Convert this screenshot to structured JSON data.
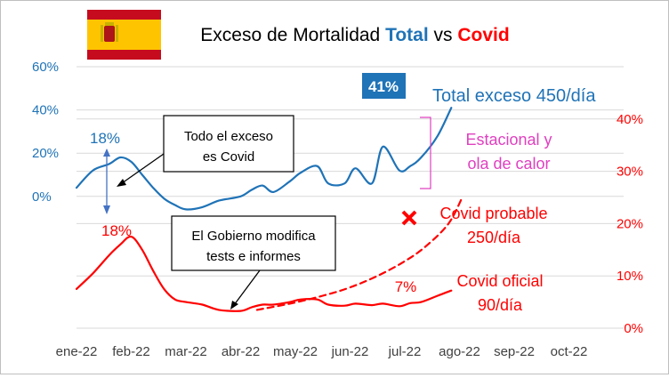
{
  "colors": {
    "total": "#1f73b7",
    "covid": "#ff0000",
    "seasonal": "#e040c0",
    "badge_bg": "#1f73b7",
    "flag_red": "#c60b1e",
    "flag_yellow": "#ffc400"
  },
  "chart_data": {
    "type": "line",
    "title": {
      "prefix": "Exceso de Mortalidad ",
      "total_word": "Total",
      "middle": " vs ",
      "covid_word": "Covid"
    },
    "x_ticks": [
      "ene-22",
      "feb-22",
      "mar-22",
      "abr-22",
      "may-22",
      "jun-22",
      "jul-22",
      "ago-22",
      "sep-22",
      "oct-22"
    ],
    "y_left": {
      "ticks": [
        "60%",
        "40%",
        "20%",
        "0%"
      ],
      "tick_values": [
        60,
        40,
        20,
        0
      ],
      "range": [
        -61,
        60
      ]
    },
    "y_right": {
      "ticks": [
        "40%",
        "30%",
        "20%",
        "10%",
        "0%"
      ],
      "tick_values": [
        40,
        30,
        20,
        10,
        0
      ],
      "range": [
        0,
        50
      ]
    },
    "grid": true,
    "series": [
      {
        "axis": "left",
        "x": [
          0,
          0.3,
          0.6,
          0.8,
          1.0,
          1.2,
          1.4,
          1.6,
          1.8,
          2.0,
          2.3,
          2.6,
          3.0,
          3.2,
          3.4,
          3.6,
          3.9,
          4.1,
          4.4,
          4.6,
          4.9,
          5.1,
          5.4,
          5.6,
          5.9,
          6.1,
          6.3,
          6.6,
          6.85
        ],
        "values": [
          4,
          12,
          15,
          18,
          16,
          10,
          4,
          -1,
          -4,
          -6,
          -5,
          -2,
          0,
          3,
          5,
          2,
          7,
          11,
          14,
          6,
          6,
          13,
          6,
          23,
          12,
          14,
          18,
          28,
          41
        ]
      },
      {
        "axis": "right",
        "x": [
          0,
          0.3,
          0.6,
          0.8,
          1.0,
          1.2,
          1.4,
          1.6,
          1.8,
          2.0,
          2.3,
          2.6,
          3.0,
          3.2,
          3.4,
          3.6,
          3.9,
          4.1,
          4.4,
          4.6,
          4.9,
          5.1,
          5.4,
          5.6,
          5.9,
          6.1,
          6.3,
          6.6,
          6.85
        ],
        "values": [
          7.5,
          10.5,
          14,
          16,
          17.5,
          15,
          11,
          7.5,
          5.5,
          5,
          4.5,
          3.5,
          3.3,
          4,
          4.5,
          4.5,
          5,
          5.5,
          5.5,
          4.5,
          4.3,
          4.7,
          4.4,
          4.7,
          4.2,
          4.8,
          5,
          6.2,
          7.2
        ]
      },
      {
        "axis": "right",
        "style": "dashed",
        "x": [
          3.3,
          3.9,
          4.5,
          5.0,
          5.5,
          6.0,
          6.4,
          6.8,
          7.05
        ],
        "values": [
          3.5,
          4.7,
          6.2,
          7.8,
          10,
          12.8,
          15.8,
          20,
          25
        ]
      }
    ],
    "annotations": {
      "badge": "41%",
      "total_label": "Total exceso 450/día",
      "seasonal_line1": "Estacional y",
      "seasonal_line2": "ola de calor",
      "peak_total": "18%",
      "peak_covid": "18%",
      "box1_line1": "Todo el exceso",
      "box1_line2": "es Covid",
      "box2_line1": "El Gobierno modifica",
      "box2_line2": "tests e informes",
      "covid_prob_line1": "Covid probable",
      "covid_prob_line2": "250/día",
      "covid_oficial_line1": "Covid oficial",
      "covid_oficial_line2": "90/día",
      "seven_pct": "7%"
    }
  }
}
